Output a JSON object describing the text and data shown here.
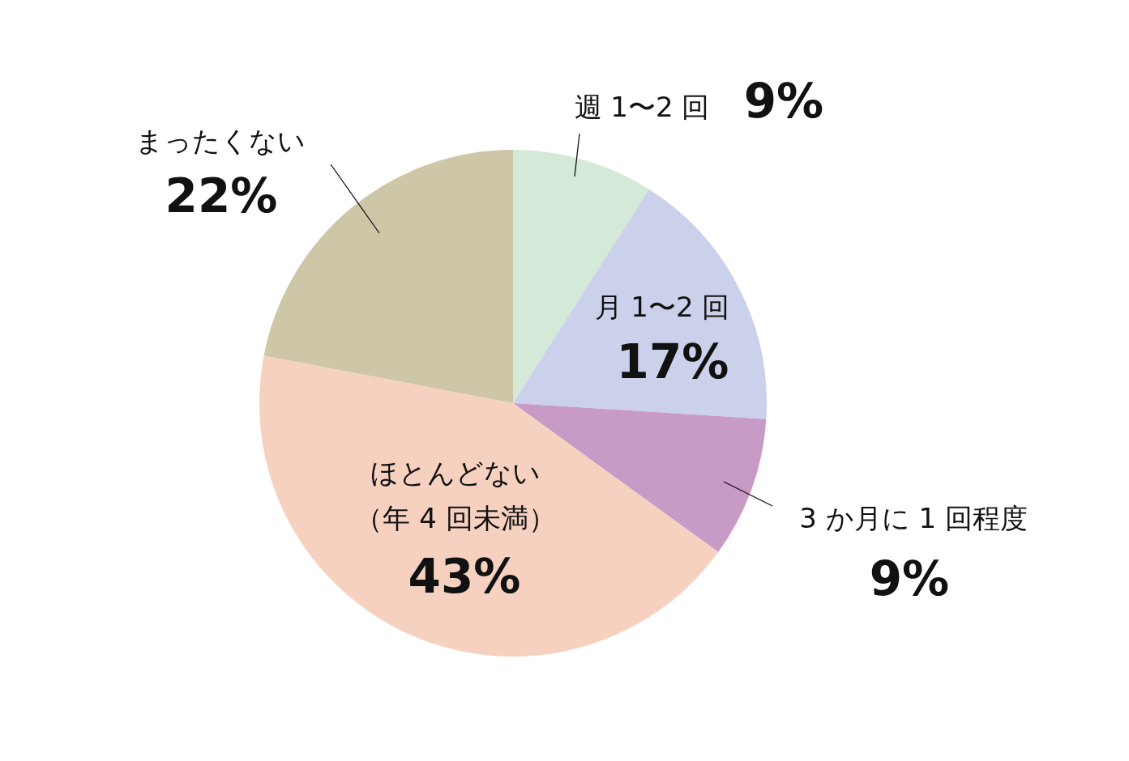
{
  "chart_data": {
    "type": "pie",
    "categories": [
      "週 1〜2 回",
      "月 1〜2 回",
      "3 か月に 1 回程度",
      "ほとんどない（年 4 回未満）",
      "まったくない"
    ],
    "values": [
      9,
      17,
      9,
      43,
      22
    ],
    "value_labels": [
      "9%",
      "17%",
      "9%",
      "43%",
      "22%"
    ],
    "colors": [
      "#d5e9d8",
      "#cbd1ea",
      "#c89ac6",
      "#f7d1c0",
      "#cdc7a7"
    ],
    "legend": false
  }
}
